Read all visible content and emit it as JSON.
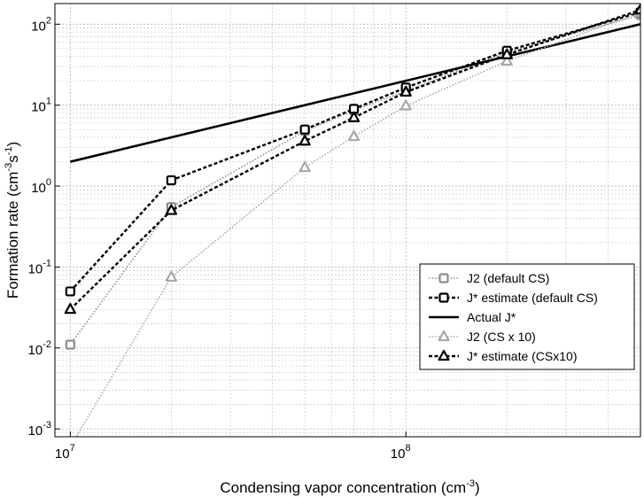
{
  "chart_data": {
    "type": "line",
    "xlabel": {
      "base": "Condensing vapor concentration (cm",
      "sup": "-3",
      "tail": ")"
    },
    "ylabel": {
      "base": "Formation rate (cm",
      "sup1": "-3",
      "mid": "s",
      "sup2": "-1",
      "tail": ")"
    },
    "x_scale": "log",
    "y_scale": "log",
    "xlim": [
      9000000,
      500000000
    ],
    "ylim": [
      0.0008,
      180
    ],
    "grid": true,
    "legend_position": "lower-right",
    "x_ticks": [
      {
        "value": 10000000,
        "base": "10",
        "exp": "7"
      },
      {
        "value": 100000000,
        "base": "10",
        "exp": "8"
      }
    ],
    "y_ticks": [
      {
        "value": 0.001,
        "base": "10",
        "exp": "-3"
      },
      {
        "value": 0.01,
        "base": "10",
        "exp": "-2"
      },
      {
        "value": 0.1,
        "base": "10",
        "exp": "-1"
      },
      {
        "value": 1,
        "base": "10",
        "exp": "0"
      },
      {
        "value": 10,
        "base": "10",
        "exp": "1"
      },
      {
        "value": 100,
        "base": "10",
        "exp": "2"
      }
    ],
    "series": [
      {
        "name": "J2 (default CS)",
        "color": "#8c8c8c",
        "style": "dotted",
        "marker": "square",
        "x": [
          10000000,
          20000000,
          50000000,
          70000000,
          100000000,
          200000000,
          500000000
        ],
        "y": [
          0.011,
          0.55,
          4.8,
          8.6,
          15,
          45,
          130
        ]
      },
      {
        "name": "J* estimate (default CS)",
        "color": "#000000",
        "style": "dashed",
        "marker": "square",
        "x": [
          10000000,
          20000000,
          50000000,
          70000000,
          100000000,
          200000000,
          500000000
        ],
        "y": [
          0.05,
          1.18,
          5.0,
          9.0,
          16.5,
          47,
          140
        ]
      },
      {
        "name": "Actual J*",
        "color": "#000000",
        "style": "solid",
        "marker": "none",
        "x": [
          10000000,
          500000000
        ],
        "y": [
          2,
          100
        ]
      },
      {
        "name": "J2 (CS x 10)",
        "color": "#a8a8a8",
        "style": "dotted",
        "marker": "triangle",
        "x": [
          10000000,
          20000000,
          50000000,
          70000000,
          100000000,
          200000000,
          500000000
        ],
        "y": [
          0.0006,
          0.075,
          1.7,
          4.1,
          9.8,
          35,
          140
        ]
      },
      {
        "name": "J* estimate (CSx10)",
        "color": "#000000",
        "style": "dashed",
        "marker": "triangle",
        "x": [
          10000000,
          20000000,
          50000000,
          70000000,
          100000000,
          200000000,
          500000000
        ],
        "y": [
          0.03,
          0.5,
          3.6,
          7.0,
          14.5,
          42,
          150
        ]
      }
    ]
  }
}
